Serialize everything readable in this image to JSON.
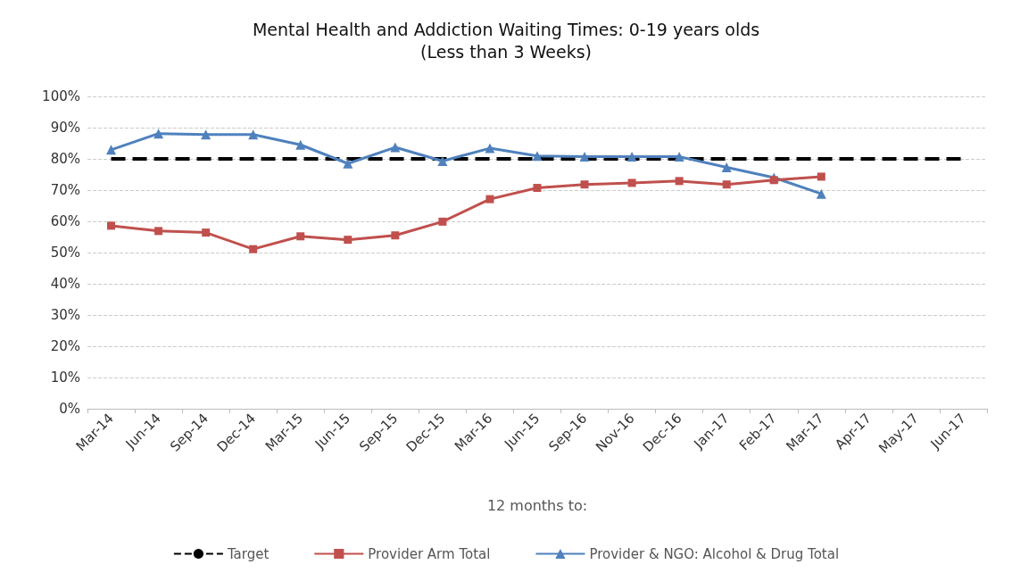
{
  "chart_data": {
    "type": "line",
    "title": "Mental Health and Addiction Waiting Times: 0-19 years olds",
    "subtitle": "(Less than 3 Weeks)",
    "xlabel": "12 months to:",
    "categories": [
      "Mar-14",
      "Jun-14",
      "Sep-14",
      "Dec-14",
      "Mar-15",
      "Jun-15",
      "Sep-15",
      "Dec-15",
      "Mar-16",
      "Jun-15",
      "Sep-16",
      "Nov-16",
      "Dec-16",
      "Jan-17",
      "Feb-17",
      "Mar-17",
      "Apr-17",
      "May-17",
      "Jun-17"
    ],
    "series": [
      {
        "name": "Target",
        "color": "#000000",
        "line_style": "dashed",
        "marker": "none",
        "values": [
          80,
          80,
          80,
          80,
          80,
          80,
          80,
          80,
          80,
          80,
          80,
          80,
          80,
          80,
          80,
          80,
          80,
          80,
          80
        ]
      },
      {
        "name": "Provider Arm Total",
        "color": "#c0504d",
        "marker": "square",
        "values": [
          58.6,
          56.9,
          56.4,
          51.1,
          55.2,
          54.1,
          55.5,
          59.9,
          67.1,
          70.7,
          71.8,
          72.3,
          72.9,
          71.8,
          73.2,
          74.3,
          null,
          null,
          null
        ]
      },
      {
        "name": "Provider & NGO: Alcohol & Drug Total",
        "color": "#4f81bd",
        "marker": "triangle",
        "values": [
          82.9,
          88.1,
          87.8,
          87.8,
          84.5,
          78.5,
          83.7,
          79.3,
          83.4,
          80.9,
          80.7,
          80.7,
          80.7,
          77.3,
          74.0,
          68.8,
          null,
          null,
          null
        ]
      }
    ],
    "ylim": [
      0,
      100
    ],
    "yticks": [
      {
        "value": 0,
        "label": "0%"
      },
      {
        "value": 10,
        "label": "10%"
      },
      {
        "value": 20,
        "label": "20%"
      },
      {
        "value": 30,
        "label": "30%"
      },
      {
        "value": 40,
        "label": "40%"
      },
      {
        "value": 50,
        "label": "50%"
      },
      {
        "value": 60,
        "label": "60%"
      },
      {
        "value": 70,
        "label": "70%"
      },
      {
        "value": 80,
        "label": "80%"
      },
      {
        "value": 90,
        "label": "90%"
      },
      {
        "value": 100,
        "label": "100%"
      }
    ],
    "grid": "y",
    "legend": "bottom"
  }
}
